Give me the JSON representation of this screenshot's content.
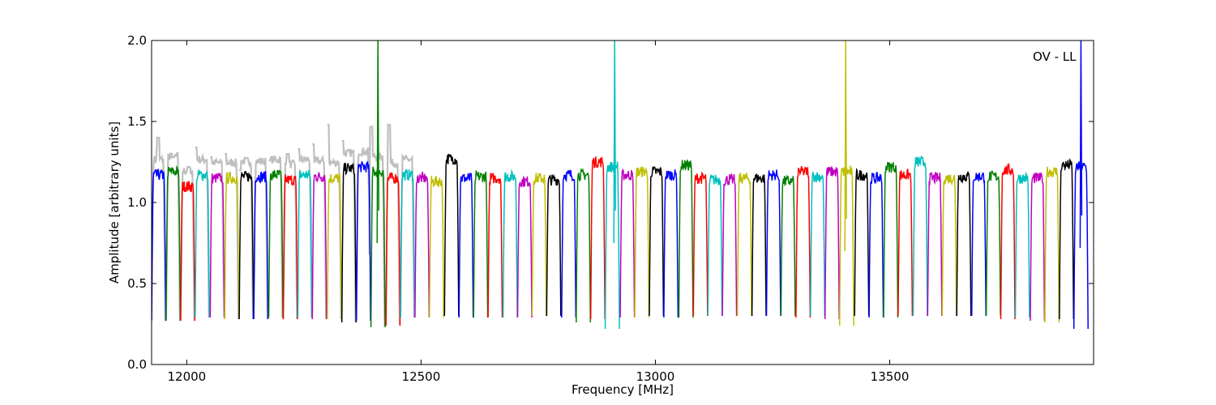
{
  "chart_data": {
    "type": "line",
    "title": "",
    "xlabel": "Frequency [MHz]",
    "ylabel": "Amplitude [arbitrary units]",
    "annotation": "OV - LL",
    "xlim": [
      11925,
      13935
    ],
    "ylim": [
      0.0,
      2.0
    ],
    "x_ticks": [
      {
        "value": 12000,
        "label": "12000"
      },
      {
        "value": 12500,
        "label": "12500"
      },
      {
        "value": 13000,
        "label": "13000"
      },
      {
        "value": 13500,
        "label": "13500"
      }
    ],
    "y_ticks": [
      {
        "value": 0.0,
        "label": "0.0"
      },
      {
        "value": 0.5,
        "label": "0.5"
      },
      {
        "value": 1.0,
        "label": "1.0"
      },
      {
        "value": 1.5,
        "label": "1.5"
      },
      {
        "value": 2.0,
        "label": "2.0"
      }
    ],
    "grid": false,
    "background_series_color": "#bfbfbf",
    "colors": [
      "#0000ff",
      "#008000",
      "#ff0000",
      "#00bfbf",
      "#bf00bf",
      "#bfbf00",
      "#000000"
    ],
    "band_width_mhz": 31.25,
    "band_start_mhz": 11925,
    "bands": [
      {
        "x_start": 11925,
        "level": 1.2,
        "min": 0.27,
        "color": "#0000ff"
      },
      {
        "x_start": 11956,
        "level": 1.22,
        "min": 0.27,
        "color": "#008000"
      },
      {
        "x_start": 11987,
        "level": 1.13,
        "min": 0.27,
        "color": "#ff0000"
      },
      {
        "x_start": 12018,
        "level": 1.2,
        "min": 0.29,
        "color": "#00bfbf"
      },
      {
        "x_start": 12050,
        "level": 1.18,
        "min": 0.29,
        "color": "#bf00bf"
      },
      {
        "x_start": 12081,
        "level": 1.18,
        "min": 0.28,
        "color": "#bfbf00"
      },
      {
        "x_start": 12112,
        "level": 1.19,
        "min": 0.28,
        "color": "#000000"
      },
      {
        "x_start": 12143,
        "level": 1.19,
        "min": 0.28,
        "color": "#0000ff"
      },
      {
        "x_start": 12175,
        "level": 1.2,
        "min": 0.29,
        "color": "#008000"
      },
      {
        "x_start": 12206,
        "level": 1.17,
        "min": 0.28,
        "color": "#ff0000"
      },
      {
        "x_start": 12237,
        "level": 1.2,
        "min": 0.29,
        "color": "#00bfbf"
      },
      {
        "x_start": 12268,
        "level": 1.19,
        "min": 0.28,
        "color": "#bf00bf"
      },
      {
        "x_start": 12300,
        "level": 1.18,
        "min": 0.28,
        "color": "#bfbf00"
      },
      {
        "x_start": 12331,
        "level": 1.24,
        "min": 0.26,
        "color": "#000000"
      },
      {
        "x_start": 12362,
        "level": 1.25,
        "min": 0.27,
        "color": "#0000ff"
      },
      {
        "x_start": 12393,
        "level": 1.22,
        "min": 0.23,
        "color": "#008000"
      },
      {
        "x_start": 12425,
        "level": 1.18,
        "min": 0.24,
        "color": "#ff0000"
      },
      {
        "x_start": 12456,
        "level": 1.2,
        "min": 0.29,
        "color": "#00bfbf"
      },
      {
        "x_start": 12487,
        "level": 1.18,
        "min": 0.29,
        "color": "#bf00bf"
      },
      {
        "x_start": 12518,
        "level": 1.16,
        "min": 0.29,
        "color": "#bfbf00"
      },
      {
        "x_start": 12550,
        "level": 1.3,
        "min": 0.3,
        "color": "#000000"
      },
      {
        "x_start": 12581,
        "level": 1.18,
        "min": 0.29,
        "color": "#0000ff"
      },
      {
        "x_start": 12612,
        "level": 1.19,
        "min": 0.29,
        "color": "#008000"
      },
      {
        "x_start": 12643,
        "level": 1.18,
        "min": 0.29,
        "color": "#ff0000"
      },
      {
        "x_start": 12675,
        "level": 1.19,
        "min": 0.29,
        "color": "#00bfbf"
      },
      {
        "x_start": 12706,
        "level": 1.16,
        "min": 0.29,
        "color": "#bf00bf"
      },
      {
        "x_start": 12737,
        "level": 1.18,
        "min": 0.3,
        "color": "#bfbf00"
      },
      {
        "x_start": 12768,
        "level": 1.17,
        "min": 0.3,
        "color": "#000000"
      },
      {
        "x_start": 12800,
        "level": 1.2,
        "min": 0.29,
        "color": "#0000ff"
      },
      {
        "x_start": 12831,
        "level": 1.2,
        "min": 0.26,
        "color": "#008000"
      },
      {
        "x_start": 12862,
        "level": 1.28,
        "min": 0.28,
        "color": "#ff0000"
      },
      {
        "x_start": 12893,
        "level": 1.25,
        "min": 0.22,
        "color": "#00bfbf"
      },
      {
        "x_start": 12925,
        "level": 1.2,
        "min": 0.29,
        "color": "#bf00bf"
      },
      {
        "x_start": 12956,
        "level": 1.22,
        "min": 0.29,
        "color": "#bfbf00"
      },
      {
        "x_start": 12987,
        "level": 1.22,
        "min": 0.3,
        "color": "#000000"
      },
      {
        "x_start": 13018,
        "level": 1.2,
        "min": 0.29,
        "color": "#0000ff"
      },
      {
        "x_start": 13050,
        "level": 1.26,
        "min": 0.29,
        "color": "#008000"
      },
      {
        "x_start": 13081,
        "level": 1.18,
        "min": 0.3,
        "color": "#ff0000"
      },
      {
        "x_start": 13112,
        "level": 1.17,
        "min": 0.3,
        "color": "#00bfbf"
      },
      {
        "x_start": 13143,
        "level": 1.17,
        "min": 0.3,
        "color": "#bf00bf"
      },
      {
        "x_start": 13175,
        "level": 1.18,
        "min": 0.3,
        "color": "#bfbf00"
      },
      {
        "x_start": 13206,
        "level": 1.18,
        "min": 0.3,
        "color": "#000000"
      },
      {
        "x_start": 13237,
        "level": 1.2,
        "min": 0.3,
        "color": "#0000ff"
      },
      {
        "x_start": 13268,
        "level": 1.16,
        "min": 0.3,
        "color": "#008000"
      },
      {
        "x_start": 13300,
        "level": 1.22,
        "min": 0.29,
        "color": "#ff0000"
      },
      {
        "x_start": 13331,
        "level": 1.19,
        "min": 0.3,
        "color": "#00bfbf"
      },
      {
        "x_start": 13362,
        "level": 1.22,
        "min": 0.28,
        "color": "#bf00bf"
      },
      {
        "x_start": 13393,
        "level": 1.22,
        "min": 0.24,
        "color": "#bfbf00"
      },
      {
        "x_start": 13425,
        "level": 1.2,
        "min": 0.3,
        "color": "#000000"
      },
      {
        "x_start": 13456,
        "level": 1.18,
        "min": 0.29,
        "color": "#0000ff"
      },
      {
        "x_start": 13487,
        "level": 1.25,
        "min": 0.29,
        "color": "#008000"
      },
      {
        "x_start": 13518,
        "level": 1.2,
        "min": 0.3,
        "color": "#ff0000"
      },
      {
        "x_start": 13550,
        "level": 1.28,
        "min": 0.3,
        "color": "#00bfbf"
      },
      {
        "x_start": 13581,
        "level": 1.18,
        "min": 0.3,
        "color": "#bf00bf"
      },
      {
        "x_start": 13612,
        "level": 1.18,
        "min": 0.3,
        "color": "#bfbf00"
      },
      {
        "x_start": 13643,
        "level": 1.19,
        "min": 0.3,
        "color": "#000000"
      },
      {
        "x_start": 13675,
        "level": 1.19,
        "min": 0.3,
        "color": "#0000ff"
      },
      {
        "x_start": 13706,
        "level": 1.19,
        "min": 0.3,
        "color": "#008000"
      },
      {
        "x_start": 13737,
        "level": 1.23,
        "min": 0.28,
        "color": "#ff0000"
      },
      {
        "x_start": 13768,
        "level": 1.18,
        "min": 0.29,
        "color": "#00bfbf"
      },
      {
        "x_start": 13800,
        "level": 1.18,
        "min": 0.27,
        "color": "#bf00bf"
      },
      {
        "x_start": 13831,
        "level": 1.22,
        "min": 0.26,
        "color": "#bfbf00"
      },
      {
        "x_start": 13862,
        "level": 1.26,
        "min": 0.28,
        "color": "#000000"
      },
      {
        "x_start": 13893,
        "level": 1.25,
        "min": 0.22,
        "color": "#0000ff"
      }
    ],
    "gray_bumps": [
      {
        "x": 11939,
        "y": 1.4
      },
      {
        "x": 11972,
        "y": 1.28
      },
      {
        "x": 12004,
        "y": 1.22
      },
      {
        "x": 12018,
        "y": 1.34
      },
      {
        "x": 12050,
        "y": 1.28
      },
      {
        "x": 12082,
        "y": 1.3
      },
      {
        "x": 12112,
        "y": 1.2
      },
      {
        "x": 12175,
        "y": 1.26
      },
      {
        "x": 12215,
        "y": 1.3
      },
      {
        "x": 12237,
        "y": 1.33
      },
      {
        "x": 12268,
        "y": 1.36
      },
      {
        "x": 12300,
        "y": 1.48
      },
      {
        "x": 12331,
        "y": 1.38
      },
      {
        "x": 12354,
        "y": 1.44
      },
      {
        "x": 12393,
        "y": 1.47
      },
      {
        "x": 12418,
        "y": 1.47
      },
      {
        "x": 12432,
        "y": 1.48
      }
    ],
    "spikes": [
      {
        "x": 12408,
        "color": "#008000",
        "y_top": 2.0,
        "y_low": 0.75
      },
      {
        "x": 12913,
        "color": "#00bfbf",
        "y_top": 2.0,
        "y_low": 0.75
      },
      {
        "x": 13406,
        "color": "#bfbf00",
        "y_top": 2.0,
        "y_low": 0.7
      },
      {
        "x": 13908,
        "color": "#0000ff",
        "y_top": 2.0,
        "y_low": 0.72
      }
    ]
  }
}
